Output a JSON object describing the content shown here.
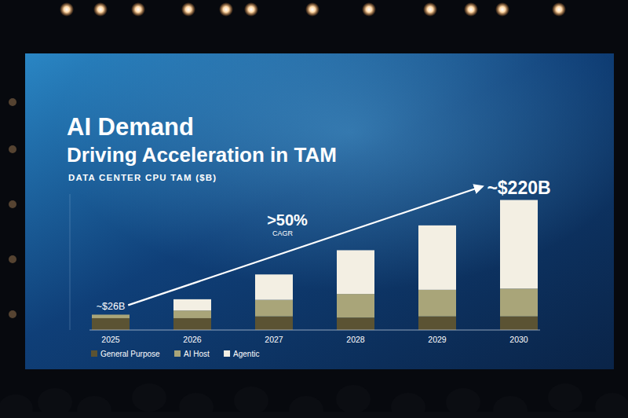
{
  "chart_data": {
    "type": "bar",
    "stacked": true,
    "title": "AI Demand",
    "subtitle": "Driving Acceleration in TAM",
    "y_label": "DATA CENTER CPU TAM ($B)",
    "categories": [
      "2025",
      "2026",
      "2027",
      "2028",
      "2029",
      "2030"
    ],
    "series": [
      {
        "name": "General Purpose",
        "color": "#5b5333",
        "values": [
          20,
          20,
          23,
          21,
          23,
          23
        ]
      },
      {
        "name": "AI Host",
        "color": "#a9a579",
        "values": [
          6,
          13,
          28,
          40,
          45,
          47
        ]
      },
      {
        "name": "Agentic",
        "color": "#f3efe3",
        "values": [
          0,
          19,
          43,
          74,
          109,
          150
        ]
      }
    ],
    "ylim": [
      0,
      230
    ],
    "yticks": [
      0
    ],
    "tick_labels": "x",
    "grid": false,
    "legend": "bottom-left",
    "annotations": [
      {
        "text": "~$26B",
        "category": "2025"
      },
      {
        "text": "~$220B",
        "category": "2030"
      },
      {
        "text": ">50%",
        "label": "CAGR"
      }
    ]
  }
}
